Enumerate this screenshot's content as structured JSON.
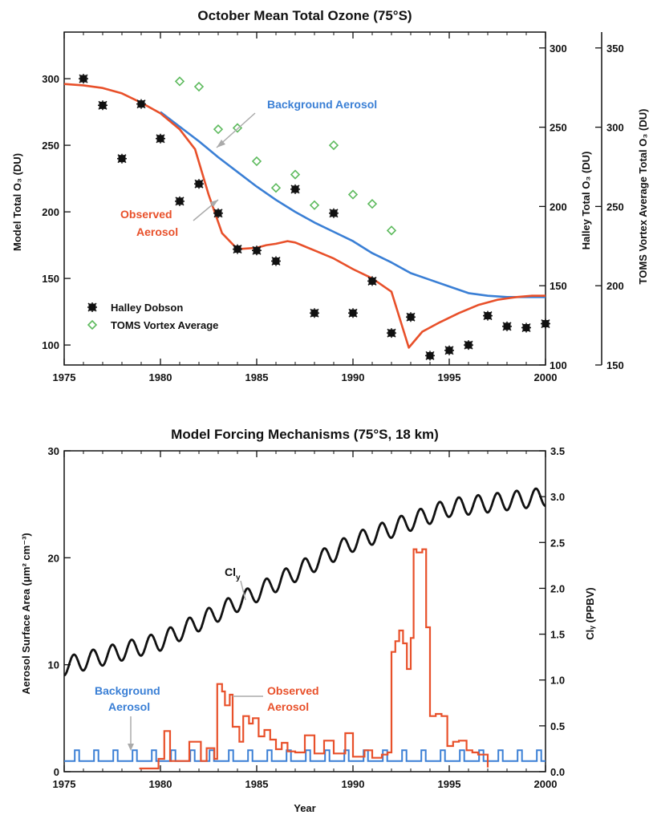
{
  "chart_data": [
    {
      "type": "scatter",
      "title": "October Mean Total Ozone (75°S)",
      "xlabel": "",
      "ylabel": "Model Total O₃ (DU)",
      "ylabel_right": "Halley Total O₃ (DU)",
      "ylabel_right2": "TOMS Vortex Average Total O₃ (DU)",
      "xlim": [
        1975,
        2000
      ],
      "ylim": [
        85,
        335
      ],
      "ylim_right": [
        100,
        310
      ],
      "ylim_right2": [
        150,
        360
      ],
      "x_ticks": [
        "1975",
        "1980",
        "1985",
        "1990",
        "1995",
        "2000"
      ],
      "y_ticks": [
        "100",
        "150",
        "200",
        "250",
        "300"
      ],
      "y_ticks_right": [
        "100",
        "150",
        "200",
        "250",
        "300"
      ],
      "y_ticks_right2": [
        "150",
        "200",
        "250",
        "300",
        "350"
      ],
      "legend": [
        "Halley Dobson",
        "TOMS Vortex Average"
      ],
      "legend_position": "bottom-left",
      "annotations": {
        "background": "Background Aerosol",
        "observed_1": "Observed",
        "observed_2": "Aerosol"
      },
      "series": [
        {
          "name": "Background Aerosol",
          "kind": "line",
          "color": "#3a7fd5",
          "x": [
            1980,
            1981,
            1982,
            1983,
            1984,
            1985,
            1986,
            1987,
            1988,
            1989,
            1990,
            1991,
            1992,
            1993,
            1994,
            1995,
            1996,
            1997,
            1998,
            1999,
            2000
          ],
          "y": [
            275,
            264,
            253,
            241,
            230,
            219,
            209,
            200,
            192,
            185,
            178,
            169,
            162,
            154,
            149,
            144,
            139,
            137,
            136,
            136,
            136
          ]
        },
        {
          "name": "Observed Aerosol",
          "kind": "line",
          "color": "#e8502a",
          "x": [
            1975,
            1976,
            1977,
            1978,
            1979,
            1980,
            1981,
            1981.8,
            1982.5,
            1983.2,
            1984,
            1985,
            1985.5,
            1986,
            1986.6,
            1987,
            1988,
            1989,
            1990,
            1991,
            1992,
            1992.9,
            1993.6,
            1994.5,
            1995.5,
            1996.5,
            1997.5,
            1998.5,
            1999.3,
            2000
          ],
          "y": [
            296,
            295,
            293,
            289,
            282,
            274,
            262,
            247,
            213,
            184,
            172,
            173,
            175,
            176,
            178,
            177,
            171,
            165,
            157,
            150,
            140,
            98,
            110,
            117,
            124,
            130,
            134,
            136,
            137,
            137
          ]
        },
        {
          "name": "Halley Dobson",
          "kind": "scatter",
          "marker": "asterisk-square",
          "color": "#111111",
          "x": [
            1976,
            1977,
            1978,
            1979,
            1980,
            1981,
            1982,
            1983,
            1984,
            1985,
            1986,
            1987,
            1988,
            1989,
            1990,
            1991,
            1992,
            1993,
            1994,
            1995,
            1996,
            1997,
            1998,
            1999,
            2000
          ],
          "y": [
            300,
            280,
            240,
            281,
            255,
            208,
            221,
            199,
            172,
            171,
            163,
            217,
            124,
            199,
            124,
            148,
            109,
            121,
            92,
            96,
            100,
            122,
            114,
            113,
            116
          ]
        },
        {
          "name": "TOMS Vortex Average",
          "kind": "scatter",
          "marker": "diamond",
          "color": "#5dba5d",
          "x": [
            1981,
            1982,
            1983,
            1984,
            1985,
            1986,
            1987,
            1988,
            1989,
            1990,
            1991,
            1992
          ],
          "y": [
            298,
            294,
            262,
            263,
            238,
            218,
            228,
            205,
            250,
            213,
            206,
            186
          ]
        }
      ]
    },
    {
      "type": "line",
      "title": "Model Forcing Mechanisms (75°S, 18 km)",
      "xlabel": "Year",
      "ylabel": "Aerosol Surface Area (μm² cm⁻³)",
      "ylabel_right": "Clᵧ (PPBV)",
      "xlim": [
        1975,
        2000
      ],
      "ylim": [
        0,
        30
      ],
      "ylim_right": [
        0,
        3.5
      ],
      "x_ticks": [
        "1975",
        "1980",
        "1985",
        "1990",
        "1995",
        "2000"
      ],
      "y_ticks": [
        "0",
        "10",
        "20",
        "30"
      ],
      "y_ticks_right": [
        "0.0",
        "0.5",
        "1.0",
        "1.5",
        "2.0",
        "2.5",
        "3.0",
        "3.5"
      ],
      "annotations": {
        "cly": "Cl",
        "cly_sub": "y",
        "background_1": "Background",
        "background_2": "Aerosol",
        "observed_1": "Observed",
        "observed_2": "Aerosol"
      },
      "series": [
        {
          "name": "Cly",
          "axis": "right",
          "color": "#111111",
          "x": [
            1975,
            1980,
            1985,
            1990,
            1995,
            2000
          ],
          "y": [
            1.15,
            1.42,
            1.95,
            2.5,
            2.88,
            3.0
          ],
          "seasonal_amplitude": 0.1
        },
        {
          "name": "Observed Aerosol",
          "axis": "left",
          "color": "#e8502a",
          "x": [
            1978.9,
            1979.9,
            1980.2,
            1980.5,
            1981.2,
            1981.5,
            1982.1,
            1982.4,
            1982.8,
            1982.95,
            1983.2,
            1983.35,
            1983.6,
            1983.75,
            1984.1,
            1984.3,
            1984.6,
            1984.8,
            1985.1,
            1985.4,
            1985.7,
            1986.0,
            1986.3,
            1986.6,
            1987.0,
            1987.5,
            1988.0,
            1988.5,
            1989.0,
            1989.6,
            1990.0,
            1990.6,
            1991.0,
            1991.5,
            1991.8,
            1992.0,
            1992.2,
            1992.4,
            1992.6,
            1992.8,
            1993.0,
            1993.15,
            1993.3,
            1993.6,
            1993.8,
            1994.0,
            1994.3,
            1994.6,
            1994.9,
            1995.2,
            1995.5,
            1995.9,
            1996.2,
            1996.5,
            1997.0
          ],
          "y": [
            0.3,
            1.2,
            3.8,
            1.0,
            1.0,
            2.8,
            1.0,
            2.2,
            1.2,
            8.2,
            7.5,
            6.2,
            7.2,
            4.2,
            2.8,
            5.2,
            4.5,
            5.0,
            3.3,
            3.9,
            3.0,
            2.1,
            2.7,
            1.9,
            1.8,
            3.4,
            1.7,
            2.9,
            1.7,
            3.6,
            1.4,
            2.0,
            1.3,
            1.6,
            1.8,
            11.2,
            12.2,
            13.2,
            12.0,
            9.6,
            12.5,
            20.8,
            20.5,
            20.8,
            13.5,
            5.2,
            5.4,
            5.2,
            2.4,
            2.8,
            2.9,
            2.0,
            1.8,
            1.6,
            0.4
          ]
        },
        {
          "name": "Background Aerosol",
          "axis": "left",
          "color": "#3a7fd5",
          "x": [
            1975,
            2000
          ],
          "y": [
            1.0,
            1.0
          ],
          "seasonal_peak": 2.0
        }
      ]
    }
  ]
}
